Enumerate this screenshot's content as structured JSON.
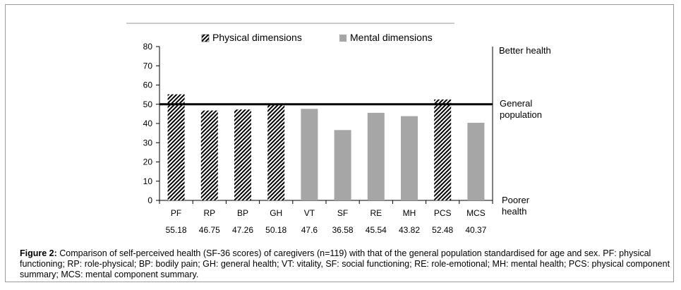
{
  "chart_data": {
    "type": "bar",
    "categories": [
      "PF",
      "RP",
      "BP",
      "GH",
      "VT",
      "SF",
      "RE",
      "MH",
      "PCS",
      "MCS"
    ],
    "values": [
      55.18,
      46.75,
      47.26,
      50.18,
      47.6,
      36.58,
      45.54,
      43.82,
      52.48,
      40.37
    ],
    "value_labels": [
      "55.18",
      "46.75",
      "47.26",
      "50.18",
      "47.6",
      "36.58",
      "45.54",
      "43.82",
      "52.48",
      "40.37"
    ],
    "groups": [
      "physical",
      "physical",
      "physical",
      "physical",
      "mental",
      "mental",
      "mental",
      "mental",
      "physical",
      "mental"
    ],
    "legend": [
      {
        "key": "physical",
        "label": "Physical dimensions",
        "pattern": "diagonal-hatch"
      },
      {
        "key": "mental",
        "label": "Mental dimensions",
        "color": "#a6a6a6"
      }
    ],
    "yticks": [
      0,
      10,
      20,
      30,
      40,
      50,
      60,
      70,
      80
    ],
    "ylim": [
      0,
      80
    ],
    "reference_line": {
      "value": 50,
      "label_lines": [
        "General",
        "population"
      ]
    },
    "annotations": {
      "top": "Better health",
      "bottom_lines": [
        "Poorer",
        "health"
      ]
    },
    "legend_position": "top",
    "grid": false
  },
  "caption": {
    "label": "Figure 2:",
    "text": " Comparison of self-perceived health (SF-36 scores) of caregivers (n=119) with that of the general population standardised for age and sex. PF: physical functioning; RP: role-physical; BP: bodily pain; GH: general health; VT: vitality, SF: social functioning; RE: role-emotional; MH: mental health; PCS: physical component summary; MCS: mental component summary."
  },
  "colors": {
    "mental_bar": "#a6a6a6",
    "hatch": "#000000",
    "axis": "#000000"
  }
}
